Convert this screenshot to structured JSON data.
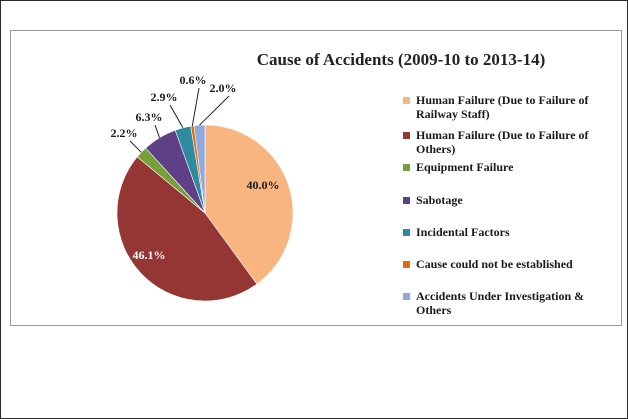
{
  "chart_data": {
    "type": "pie",
    "title": "Cause of Accidents (2009-10 to 2013-14)",
    "start_angle_deg": 0,
    "legend_position": "right",
    "slices": [
      {
        "label": "Human Failure (Due to Failure of Railway Staff)",
        "legend_lines": [
          "Human Failure (Due to Failure of",
          "Railway Staff)"
        ],
        "value": 40.0,
        "display": "40.0%",
        "color": "#F9B57F"
      },
      {
        "label": "Human Failure (Due to Failure of Others)",
        "legend_lines": [
          "Human Failure (Due to Failure of",
          "Others)"
        ],
        "value": 46.1,
        "display": "46.1%",
        "color": "#943634"
      },
      {
        "label": "Equipment Failure",
        "legend_lines": [
          "Equipment Failure"
        ],
        "value": 2.2,
        "display": "2.2%",
        "color": "#77A03B"
      },
      {
        "label": "Sabotage",
        "legend_lines": [
          "Sabotage"
        ],
        "value": 6.3,
        "display": "6.3%",
        "color": "#5F3F86"
      },
      {
        "label": "Incidental Factors",
        "legend_lines": [
          "Incidental Factors"
        ],
        "value": 2.9,
        "display": "2.9%",
        "color": "#2E8A9E"
      },
      {
        "label": "Cause could not be established",
        "legend_lines": [
          "Cause could not be established"
        ],
        "value": 0.6,
        "display": "0.6%",
        "color": "#E36C0A"
      },
      {
        "label": "Accidents Under Investigation & Others",
        "legend_lines": [
          "Accidents Under Investigation &",
          "Others"
        ],
        "value": 2.0,
        "display": "2.0%",
        "color": "#8EA9DB"
      }
    ]
  }
}
